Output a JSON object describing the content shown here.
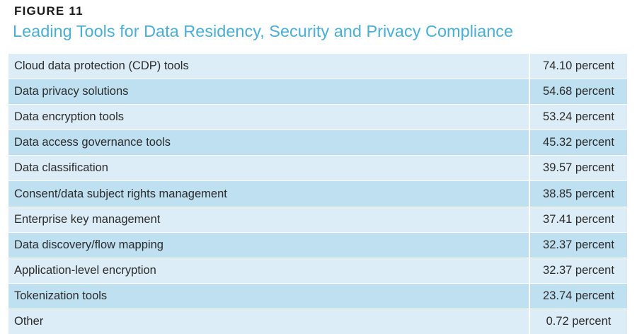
{
  "figure_label": "FIGURE 11",
  "chart_data": {
    "type": "table",
    "title": "Leading Tools for Data Residency, Security and Privacy Compliance",
    "columns": [
      "",
      ""
    ],
    "rows": [
      {
        "label": "Cloud data protection (CDP) tools",
        "value": 74.1,
        "display": "74.10 percent"
      },
      {
        "label": "Data privacy solutions",
        "value": 54.68,
        "display": "54.68 percent"
      },
      {
        "label": "Data encryption tools",
        "value": 53.24,
        "display": "53.24 percent"
      },
      {
        "label": "Data access governance tools",
        "value": 45.32,
        "display": "45.32 percent"
      },
      {
        "label": "Data classification",
        "value": 39.57,
        "display": "39.57 percent"
      },
      {
        "label": "Consent/data subject rights management",
        "value": 38.85,
        "display": "38.85 percent"
      },
      {
        "label": "Enterprise key management",
        "value": 37.41,
        "display": "37.41 percent"
      },
      {
        "label": "Data discovery/flow mapping",
        "value": 32.37,
        "display": "32.37 percent"
      },
      {
        "label": "Application-level encryption",
        "value": 32.37,
        "display": "32.37 percent"
      },
      {
        "label": "Tokenization tools",
        "value": 23.74,
        "display": "23.74 percent"
      },
      {
        "label": "Other",
        "value": 0.72,
        "display": "0.72 percent"
      }
    ]
  },
  "colors": {
    "title": "#4aaed6",
    "row_light": "#dcedf7",
    "row_dark": "#bfe0f1"
  }
}
